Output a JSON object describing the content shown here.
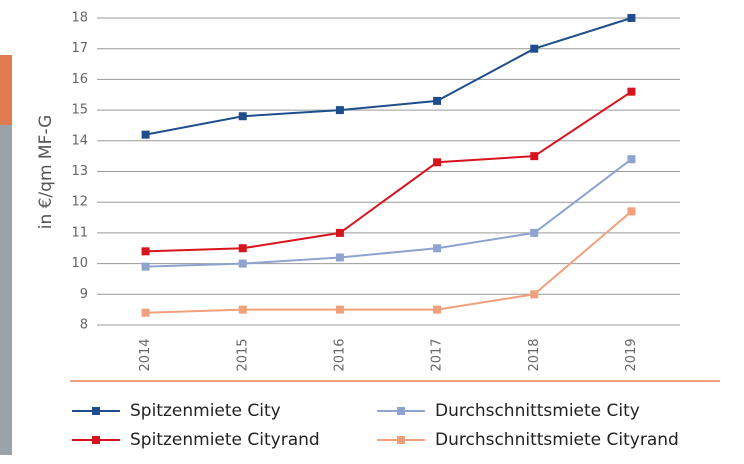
{
  "chart_data": {
    "type": "line",
    "y_label": "in €/qm MF-G",
    "categories": [
      "2014",
      "2015",
      "2016",
      "2017",
      "2018",
      "2019"
    ],
    "series": [
      {
        "name": "Spitzenmiete City",
        "color": "#1f4e8c",
        "values": [
          14.2,
          14.8,
          15.0,
          15.3,
          17.0,
          18.0
        ]
      },
      {
        "name": "Durchschnittsmiete City",
        "color": "#8fa3cf",
        "values": [
          9.9,
          10.0,
          10.2,
          10.5,
          11.0,
          13.4
        ]
      },
      {
        "name": "Spitzenmiete Cityrand",
        "color": "#d7141e",
        "values": [
          10.4,
          10.5,
          11.0,
          13.3,
          13.5,
          15.6
        ]
      },
      {
        "name": "Durchschnittsmiete Cityrand",
        "color": "#f0a07a",
        "values": [
          8.4,
          8.5,
          8.5,
          8.5,
          9.0,
          11.7
        ]
      }
    ],
    "ylim": [
      8,
      18
    ],
    "yticks": [
      8,
      9,
      10,
      11,
      12,
      13,
      14,
      15,
      16,
      17,
      18
    ],
    "grid": true
  }
}
